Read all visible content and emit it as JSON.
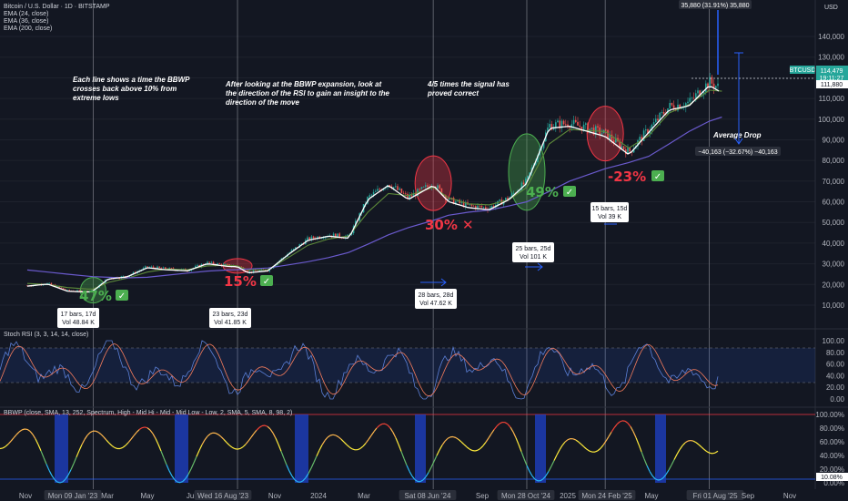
{
  "header": {
    "symbol_line": "Bitcoin / U.S. Dollar · 1D · BITSTAMP",
    "indicators": [
      "EMA (24, close)",
      "EMA (36, close)",
      "EMA (200, close)"
    ],
    "currency": "USD"
  },
  "top_measure": "35,880 (31.91%) 35,880",
  "annotations": [
    {
      "text": "Each line shows a time the BBWP crosses back above 10% from extreme lows"
    },
    {
      "text": "After looking at the BBWP expansion, look at the direction of the RSI to gain an insight to the direction of the move"
    },
    {
      "text": "4/5 times the signal has proved correct"
    },
    {
      "text": "Average Drop"
    }
  ],
  "signals": [
    {
      "pct": "47%",
      "mark": "✅",
      "color": "#4caf50"
    },
    {
      "pct": "15%",
      "mark": "✅",
      "color": "#f23645"
    },
    {
      "pct": "30%",
      "mark": "✕",
      "color": "#f23645"
    },
    {
      "pct": "49%",
      "mark": "✅",
      "color": "#4caf50"
    },
    {
      "pct": "-23%",
      "mark": "✅",
      "color": "#f23645"
    }
  ],
  "info_boxes": [
    {
      "line1": "17 bars, 17d",
      "line2": "Vol 48.84 K"
    },
    {
      "line1": "23 bars, 23d",
      "line2": "Vol 41.85 K"
    },
    {
      "line1": "28 bars, 28d",
      "line2": "Vol 47.62 K"
    },
    {
      "line1": "25 bars, 25d",
      "line2": "Vol 101 K"
    },
    {
      "line1": "15 bars, 15d",
      "line2": "Vol 39 K"
    }
  ],
  "drop_measure": "−40,163 (−32.67%) −40,163",
  "price_labels": {
    "btcusd_tag": "BTCUSD",
    "last_price": "114,479",
    "countdown": "19:11:27",
    "line_price": "111,880"
  },
  "subpanes": {
    "stoch_title": "Stoch RSI (3, 3, 14, 14, close)",
    "bbwp_title": "BBWP (close, SMA, 13, 252, Spectrum, High - Mid Hi - Mid - Mid Low - Low, 2, SMA, 5, SMA, 8, 98, 2)",
    "stoch_ticks": [
      "100.00",
      "80.00",
      "60.00",
      "40.00",
      "20.00",
      "0.00"
    ],
    "bbwp_ticks": [
      "100.00%",
      "80.00%",
      "60.00%",
      "40.00%",
      "20.00%",
      "0.00%"
    ],
    "bbwp_last": "10.08%"
  },
  "time_axis": {
    "labels": [
      "Nov",
      "Mon 09 Jan '23",
      "Mar",
      "May",
      "Jul",
      "Wed 16 Aug '23",
      "Nov",
      "2024",
      "Mar",
      "Sat 08 Jun '24",
      "Sep",
      "Mon 28 Oct '24",
      "2025",
      "Mon 24 Feb '25",
      "May",
      "Fri 01 Aug '25",
      "Sep",
      "Nov"
    ]
  },
  "colors": {
    "background": "#131722",
    "ema_fast": "#ffffff",
    "ema_mid": "#5d8a3a",
    "ema_200": "#6a5acd",
    "stoch_k": "#5b7fd6",
    "stoch_d": "#f57c5c",
    "up": "#26a69a",
    "down": "#ef5350",
    "measure": "#2962ff",
    "signal_green": "#4caf50",
    "signal_red": "#f23645"
  },
  "chart_data": {
    "type": "line",
    "title": "Bitcoin / U.S. Dollar · 1D · BITSTAMP",
    "y_axis_ticks": [
      140000,
      130000,
      120000,
      110000,
      100000,
      90000,
      80000,
      70000,
      60000,
      50000,
      40000,
      30000,
      20000,
      10000
    ],
    "ylim": [
      5000,
      152000
    ],
    "x": [
      "2022-10-01",
      "2022-11-01",
      "2022-12-01",
      "2023-01-01",
      "2023-01-09",
      "2023-02-01",
      "2023-03-01",
      "2023-04-01",
      "2023-05-01",
      "2023-06-01",
      "2023-07-01",
      "2023-08-01",
      "2023-08-16",
      "2023-09-01",
      "2023-10-01",
      "2023-11-01",
      "2023-12-01",
      "2024-01-01",
      "2024-02-01",
      "2024-03-01",
      "2024-04-01",
      "2024-05-01",
      "2024-06-08",
      "2024-07-01",
      "2024-08-01",
      "2024-09-01",
      "2024-10-01",
      "2024-10-28",
      "2024-12-01",
      "2025-01-01",
      "2025-02-24",
      "2025-04-01",
      "2025-05-01",
      "2025-06-01",
      "2025-07-01",
      "2025-08-01",
      "2025-08-20"
    ],
    "series": [
      {
        "name": "",
        "values": [
          19500,
          20500,
          17000,
          16600,
          17200,
          23000,
          24000,
          28500,
          27500,
          27000,
          30500,
          29200,
          29000,
          26000,
          27000,
          35000,
          42000,
          44000,
          43000,
          62000,
          69000,
          62000,
          69000,
          61000,
          58000,
          57000,
          62000,
          70000,
          97000,
          98000,
          93000,
          84000,
          95000,
          106000,
          108000,
          118000,
          114479
        ]
      },
      {
        "name": "",
        "values": [
          20500,
          20000,
          18500,
          17800,
          17800,
          21000,
          23000,
          26000,
          27500,
          27200,
          29000,
          29300,
          29000,
          27000,
          27200,
          33000,
          39000,
          42000,
          43500,
          55000,
          64000,
          63000,
          67000,
          62000,
          59000,
          58500,
          61000,
          67000,
          88000,
          95000,
          94000,
          86000,
          92000,
          103000,
          107000,
          114000,
          113500
        ]
      },
      {
        "name": "",
        "values": [
          27000,
          26000,
          25000,
          24000,
          23800,
          23500,
          23200,
          23500,
          24500,
          25500,
          26500,
          27000,
          27200,
          27500,
          28000,
          29500,
          31000,
          33000,
          35500,
          39500,
          44000,
          47500,
          51000,
          53500,
          55000,
          56000,
          58000,
          60000,
          65000,
          70000,
          76000,
          79000,
          82000,
          88000,
          94000,
          99000,
          101000
        ]
      }
    ]
  }
}
